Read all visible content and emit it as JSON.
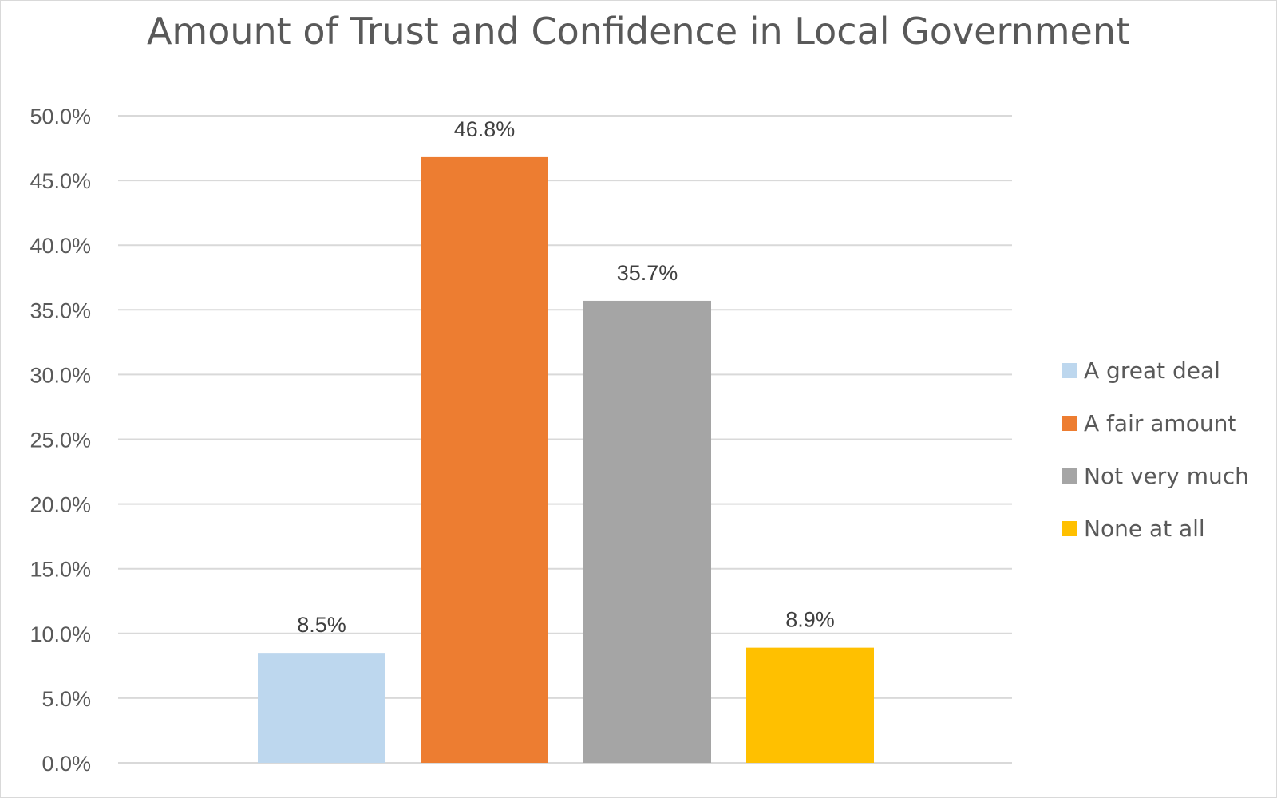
{
  "chart_data": {
    "type": "bar",
    "title": "Amount of Trust and Confidence in Local Government",
    "xlabel": "",
    "ylabel": "",
    "categories": [
      "A great deal",
      "A fair amount",
      "Not very much",
      "None at all"
    ],
    "values": [
      8.5,
      46.8,
      35.7,
      8.9
    ],
    "data_labels": [
      "8.5%",
      "46.8%",
      "35.7%",
      "8.9%"
    ],
    "colors": [
      "#bdd7ee",
      "#ed7d31",
      "#a5a5a5",
      "#ffc000"
    ],
    "ylim": [
      0,
      50
    ],
    "yticks": [
      0,
      5,
      10,
      15,
      20,
      25,
      30,
      35,
      40,
      45,
      50
    ],
    "ytick_labels": [
      "0.0%",
      "5.0%",
      "10.0%",
      "15.0%",
      "20.0%",
      "25.0%",
      "30.0%",
      "35.0%",
      "40.0%",
      "45.0%",
      "50.0%"
    ],
    "grid": true,
    "legend": {
      "placement": "right",
      "entries": [
        "A great deal",
        "A fair amount",
        "Not very much",
        "None at all"
      ]
    }
  }
}
